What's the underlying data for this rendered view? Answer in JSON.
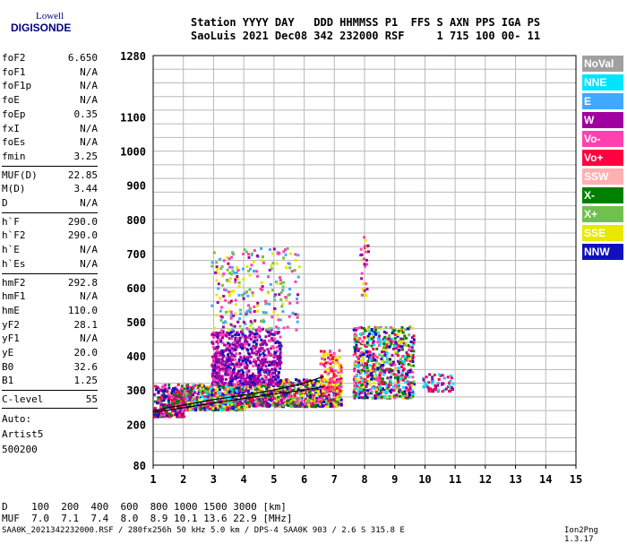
{
  "logo": {
    "line1": "Lowell",
    "line2": "DIGISONDE"
  },
  "header": {
    "line1": "Station YYYY DAY   DDD HHMMSS P1  FFS S AXN PPS IGA PS",
    "line2": "SaoLuis 2021 Dec08 342 232000 RSF     1 715 100 00- 11"
  },
  "params": [
    {
      "name": "foF2",
      "value": "6.650"
    },
    {
      "name": "foF1",
      "value": "N/A"
    },
    {
      "name": "foF1p",
      "value": "N/A"
    },
    {
      "name": "foE",
      "value": "N/A"
    },
    {
      "name": "foEp",
      "value": "0.35"
    },
    {
      "name": "fxI",
      "value": "N/A"
    },
    {
      "name": "foEs",
      "value": "N/A"
    },
    {
      "name": "fmin",
      "value": "3.25"
    },
    {
      "name": "MUF(D)",
      "value": "22.85"
    },
    {
      "name": "M(D)",
      "value": "3.44"
    },
    {
      "name": "D",
      "value": "N/A"
    },
    {
      "name": "h`F",
      "value": "290.0"
    },
    {
      "name": "h`F2",
      "value": "290.0"
    },
    {
      "name": "h`E",
      "value": "N/A"
    },
    {
      "name": "h`Es",
      "value": "N/A"
    },
    {
      "name": "hmF2",
      "value": "292.8"
    },
    {
      "name": "hmF1",
      "value": "N/A"
    },
    {
      "name": "hmE",
      "value": "110.0"
    },
    {
      "name": "yF2",
      "value": "28.1"
    },
    {
      "name": "yF1",
      "value": "N/A"
    },
    {
      "name": "yE",
      "value": "20.0"
    },
    {
      "name": "B0",
      "value": "32.6"
    },
    {
      "name": "B1",
      "value": "1.25"
    },
    {
      "name": "C-level",
      "value": "55"
    }
  ],
  "auto": {
    "line1": "Auto:",
    "line2": "Artist5",
    "line3": "500200"
  },
  "legend": [
    {
      "label": "NoVal",
      "color": "#a0a0a0"
    },
    {
      "label": "NNE",
      "color": "#00e5ff"
    },
    {
      "label": "E",
      "color": "#40a8ff"
    },
    {
      "label": "W",
      "color": "#a000a0"
    },
    {
      "label": "Vo-",
      "color": "#ff40b0"
    },
    {
      "label": "Vo+",
      "color": "#ff0040"
    },
    {
      "label": "SSW",
      "color": "#ffb0b0"
    },
    {
      "label": "X-",
      "color": "#008000"
    },
    {
      "label": "X+",
      "color": "#70c050"
    },
    {
      "label": "SSE",
      "color": "#e8e800"
    },
    {
      "label": "NNW",
      "color": "#1010c0"
    }
  ],
  "table": {
    "line1": "D    100  200  400  600  800 1000 1500 3000 [km]",
    "line2": "MUF  7.0  7.1  7.4  8.0  8.9 10.1 13.6 22.9 [MHz]"
  },
  "footer": "SAA0K_2021342232000.RSF / 280fx256h 50 kHz 5.0 km / DPS-4 SAA0K 903 / 2.6 S 315.8 E",
  "version": "Ion2Png 1.3.17",
  "chart_data": {
    "type": "scatter",
    "xlim": [
      1,
      15
    ],
    "ylim": [
      80,
      1280
    ],
    "x_ticks": [
      1,
      2,
      3,
      4,
      5,
      6,
      7,
      8,
      9,
      10,
      11,
      12,
      13,
      14,
      15
    ],
    "y_ticks": [
      80,
      200,
      300,
      400,
      500,
      600,
      700,
      800,
      900,
      1000,
      1100,
      1280
    ],
    "x_tick_labels": [
      "1",
      "2",
      "3",
      "4",
      "5",
      "6",
      "7",
      "8",
      "9",
      "10",
      "11",
      "12",
      "13",
      "14",
      "15"
    ],
    "y_tick_labels": [
      "80",
      "200",
      "300",
      "400",
      "500",
      "600",
      "700",
      "800",
      "900",
      "1000",
      "1100",
      "1280"
    ],
    "x_gridlines": [
      1,
      2,
      3,
      4,
      5,
      6,
      7,
      8,
      9,
      10,
      11,
      12,
      13,
      14,
      15
    ],
    "y_gridlines": [
      80,
      120,
      160,
      200,
      240,
      280,
      320,
      360,
      400,
      440,
      480,
      520,
      560,
      600,
      640,
      680,
      720,
      760,
      800,
      840,
      880,
      920,
      960,
      1000,
      1040,
      1080,
      1120,
      1160,
      1200,
      1240,
      1280
    ],
    "grid": true,
    "clusters": [
      {
        "xmin": 1.0,
        "xmax": 2.0,
        "ymin": 225,
        "ymax": 320,
        "n": 260,
        "colors": [
          "#1010c0",
          "#a000a0",
          "#ff0040",
          "#ff40b0",
          "#008000"
        ]
      },
      {
        "xmin": 2.0,
        "xmax": 4.0,
        "ymin": 245,
        "ymax": 320,
        "n": 600,
        "colors": [
          "#1010c0",
          "#ff0040",
          "#ff40b0",
          "#a000a0",
          "#e8e800",
          "#008000",
          "#70c050",
          "#00e5ff"
        ]
      },
      {
        "xmin": 4.0,
        "xmax": 7.2,
        "ymin": 255,
        "ymax": 335,
        "n": 800,
        "colors": [
          "#ff0040",
          "#ff40b0",
          "#a000a0",
          "#008000",
          "#70c050",
          "#e8e800",
          "#1010c0"
        ]
      },
      {
        "xmin": 2.9,
        "xmax": 5.2,
        "ymin": 320,
        "ymax": 480,
        "n": 700,
        "colors": [
          "#a000a0",
          "#a000a0",
          "#ff40b0",
          "#1010c0"
        ]
      },
      {
        "xmin": 2.9,
        "xmax": 5.8,
        "ymin": 480,
        "ymax": 720,
        "n": 260,
        "colors": [
          "#a000a0",
          "#ff40b0",
          "#40a8ff",
          "#70c050",
          "#e8e800"
        ]
      },
      {
        "xmin": 6.5,
        "xmax": 7.2,
        "ymin": 300,
        "ymax": 420,
        "n": 120,
        "colors": [
          "#ff0040",
          "#ff40b0",
          "#e8e800"
        ]
      },
      {
        "xmin": 7.6,
        "xmax": 9.6,
        "ymin": 280,
        "ymax": 490,
        "n": 700,
        "colors": [
          "#ff0040",
          "#ff40b0",
          "#a000a0",
          "#008000",
          "#e8e800",
          "#70c050",
          "#1010c0",
          "#00e5ff"
        ]
      },
      {
        "xmin": 9.9,
        "xmax": 10.9,
        "ymin": 300,
        "ymax": 350,
        "n": 60,
        "colors": [
          "#40a8ff",
          "#00e5ff",
          "#a000a0",
          "#ff0040"
        ]
      },
      {
        "xmin": 7.8,
        "xmax": 8.1,
        "ymin": 580,
        "ymax": 760,
        "n": 30,
        "colors": [
          "#ff40b0",
          "#a000a0",
          "#e8e800"
        ]
      }
    ],
    "curves": [
      {
        "name": "profile",
        "color": "#000000",
        "points": [
          [
            1.0,
            235
          ],
          [
            2.0,
            248
          ],
          [
            3.0,
            262
          ],
          [
            4.0,
            275
          ],
          [
            5.0,
            288
          ],
          [
            6.0,
            300
          ],
          [
            6.65,
            310
          ]
        ]
      },
      {
        "name": "virtual",
        "color": "#000000",
        "points": [
          [
            1.0,
            240
          ],
          [
            2.0,
            256
          ],
          [
            3.0,
            272
          ],
          [
            4.0,
            285
          ],
          [
            5.0,
            300
          ],
          [
            6.0,
            320
          ],
          [
            6.65,
            340
          ]
        ]
      }
    ]
  }
}
